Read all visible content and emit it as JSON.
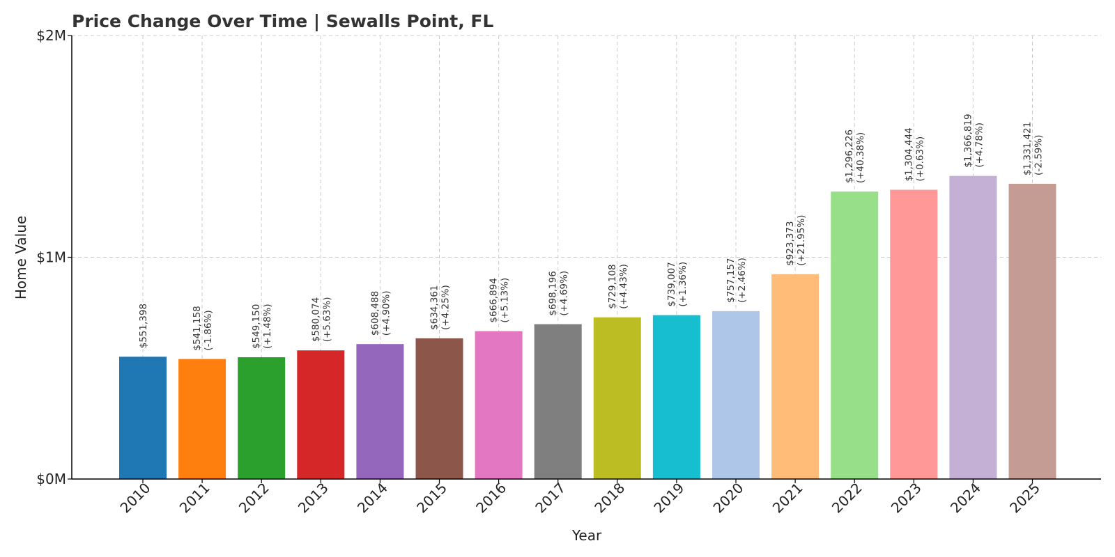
{
  "chart_data": {
    "type": "bar",
    "title": "Price Change Over Time | Sewalls Point, FL",
    "xlabel": "Year",
    "ylabel": "Home Value",
    "ylim": [
      0,
      2000000
    ],
    "yticks": [
      {
        "value": 0,
        "label": "$0M"
      },
      {
        "value": 1000000,
        "label": "$1M"
      },
      {
        "value": 2000000,
        "label": "$2M"
      }
    ],
    "grid": true,
    "categories": [
      "2010",
      "2011",
      "2012",
      "2013",
      "2014",
      "2015",
      "2016",
      "2017",
      "2018",
      "2019",
      "2020",
      "2021",
      "2022",
      "2023",
      "2024",
      "2025"
    ],
    "values": [
      551398,
      541158,
      549150,
      580074,
      608488,
      634361,
      666894,
      698196,
      729108,
      739007,
      757157,
      923373,
      1296226,
      1304444,
      1366819,
      1331421
    ],
    "value_labels": [
      "$551,398",
      "$541,158",
      "$549,150",
      "$580,074",
      "$608,488",
      "$634,361",
      "$666,894",
      "$698,196",
      "$729,108",
      "$739,007",
      "$757,157",
      "$923,373",
      "$1,296,226",
      "$1,304,444",
      "$1,366,819",
      "$1,331,421"
    ],
    "change_labels": [
      "",
      "(-1.86%)",
      "(+1.48%)",
      "(+5.63%)",
      "(+4.90%)",
      "(+4.25%)",
      "(+5.13%)",
      "(+4.69%)",
      "(+4.43%)",
      "(+1.36%)",
      "(+2.46%)",
      "(+21.95%)",
      "(+40.38%)",
      "(+0.63%)",
      "(+4.78%)",
      "(-2.59%)"
    ],
    "colors": [
      "#1f77b4",
      "#ff7f0e",
      "#2ca02c",
      "#d62728",
      "#9467bd",
      "#8c564b",
      "#e377c2",
      "#7f7f7f",
      "#bcbd22",
      "#17becf",
      "#aec7e8",
      "#ffbb78",
      "#98df8a",
      "#ff9896",
      "#c5b0d5",
      "#c49c94"
    ]
  }
}
